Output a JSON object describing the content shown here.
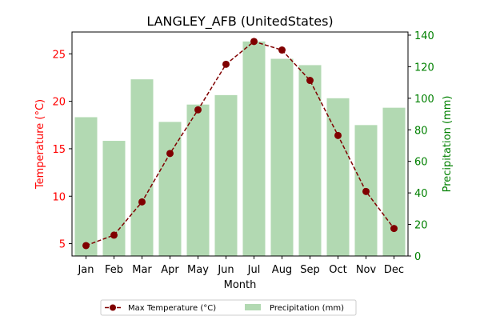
{
  "chart_data": {
    "type": "bar+line",
    "title": "LANGLEY_AFB (UnitedStates)",
    "xlabel": "Month",
    "categories": [
      "Jan",
      "Feb",
      "Mar",
      "Apr",
      "May",
      "Jun",
      "Jul",
      "Aug",
      "Sep",
      "Oct",
      "Nov",
      "Dec"
    ],
    "left_axis": {
      "label": "Temperature (°C)",
      "color": "#ff0000",
      "ylim": [
        3.7,
        27.3
      ],
      "ticks": [
        5,
        10,
        15,
        20,
        25
      ]
    },
    "right_axis": {
      "label": "Precipitation (mm)",
      "color": "#008000",
      "ylim": [
        0,
        142
      ],
      "ticks": [
        0,
        20,
        40,
        60,
        80,
        100,
        120,
        140
      ]
    },
    "series": [
      {
        "name": "Max Temperature (°C)",
        "kind": "line",
        "axis": "left",
        "color": "#800000",
        "values": [
          4.8,
          5.9,
          9.4,
          14.5,
          19.1,
          23.9,
          26.3,
          25.4,
          22.2,
          16.4,
          10.5,
          6.6
        ]
      },
      {
        "name": "Precipitation (mm)",
        "kind": "bar",
        "axis": "right",
        "color": "#b2d9b2",
        "values": [
          88,
          73,
          112,
          85,
          96,
          102,
          136,
          125,
          121,
          100,
          83,
          94
        ]
      }
    ],
    "legend": {
      "placement": "bottom-center",
      "entries": [
        "Max Temperature (°C)",
        "Precipitation (mm)"
      ]
    },
    "grid": false
  }
}
